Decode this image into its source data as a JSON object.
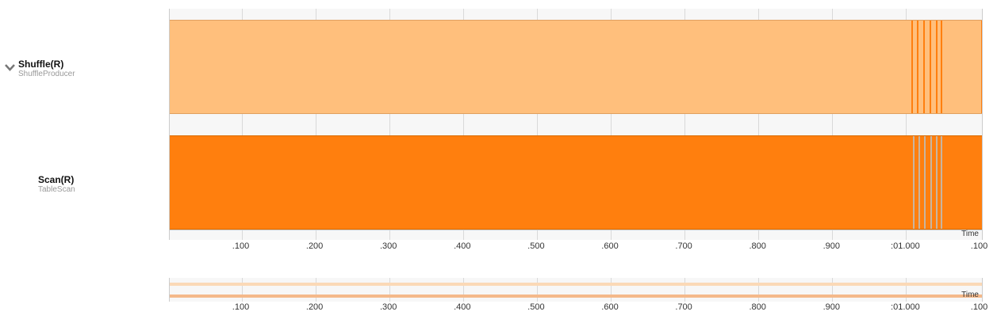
{
  "rows": [
    {
      "name": "Shuffle(R)",
      "type": "ShuffleProducer",
      "expanded": true,
      "color": "#ffbf7c",
      "segment_color": "#ff7f0e"
    },
    {
      "name": "Scan(R)",
      "type": "TableScan",
      "expanded": false,
      "color": "#ff7f0e",
      "segment_color": "#c8b5a0"
    }
  ],
  "axis": {
    "ticks": [
      ".100",
      ".200",
      ".300",
      ".400",
      ".500",
      ".600",
      ".700",
      ".800",
      ".900",
      ":01.000",
      ".100"
    ],
    "label": "Time"
  },
  "overview": {
    "ticks": [
      ".100",
      ".200",
      ".300",
      ".400",
      ".500",
      ".600",
      ".700",
      ".800",
      ".900",
      ":01.000",
      ".100"
    ],
    "label": "Time"
  },
  "colors": {
    "background": "#f7f7f7",
    "grid": "#d9d9d9",
    "shuffle_bar": "#ffbf7c",
    "scan_bar": "#ff7f0e"
  }
}
